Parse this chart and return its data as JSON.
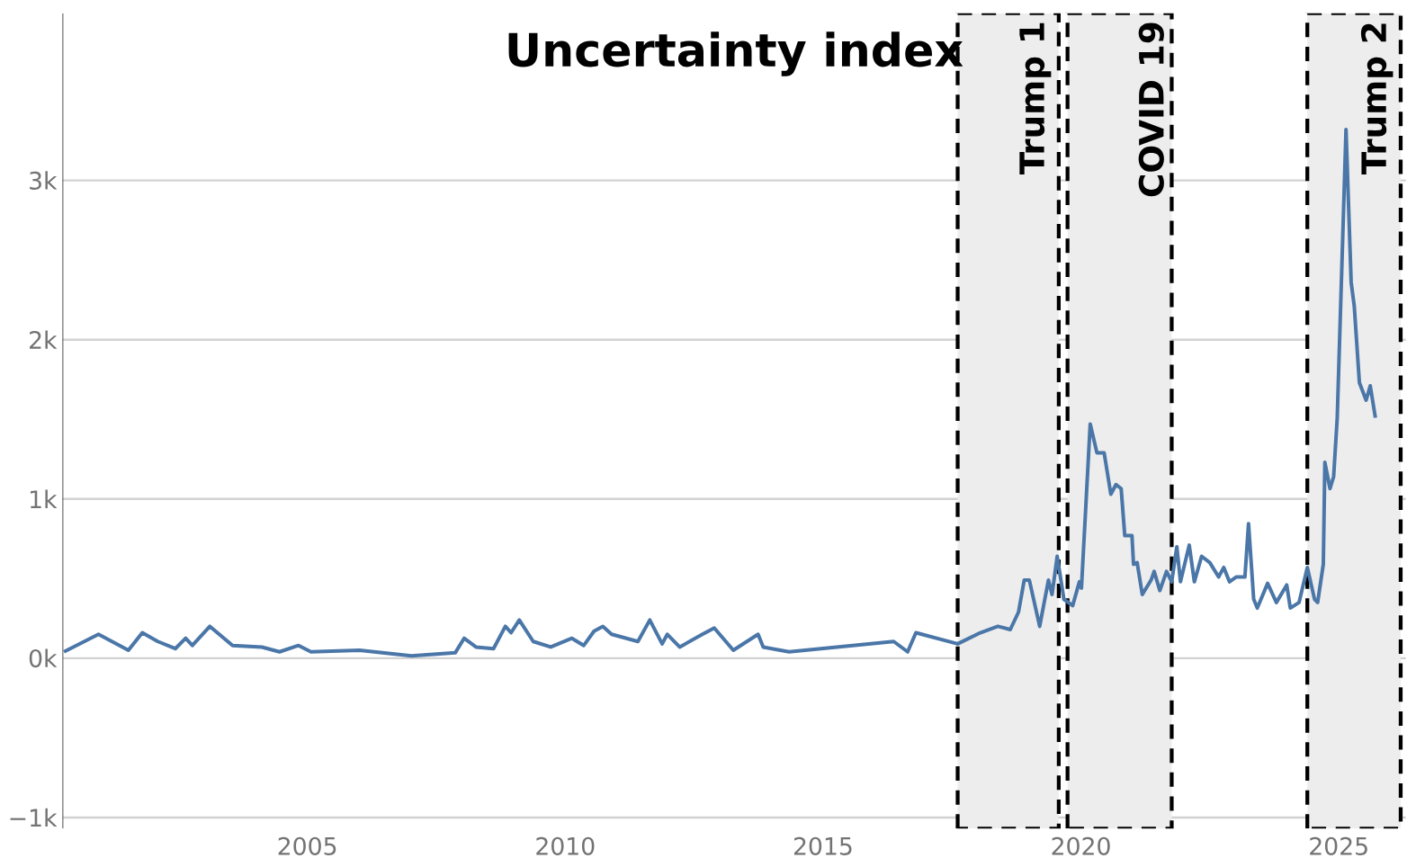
{
  "chart_data": {
    "type": "line",
    "title": "Uncertainty index",
    "color": "#4a76a8",
    "grid": "y",
    "x": [
      2000.28,
      2000.95,
      2001.53,
      2001.8,
      2002.1,
      2002.44,
      2002.64,
      2002.77,
      2003.11,
      2003.55,
      2004.12,
      2004.46,
      2004.83,
      2005.07,
      2006.01,
      2007.02,
      2007.87,
      2008.04,
      2008.27,
      2008.61,
      2008.84,
      2008.95,
      2009.11,
      2009.38,
      2009.72,
      2010.13,
      2010.36,
      2010.56,
      2010.73,
      2010.9,
      2011.41,
      2011.64,
      2011.88,
      2011.98,
      2012.22,
      2012.66,
      2012.89,
      2013.26,
      2013.74,
      2013.84,
      2014.34,
      2016.37,
      2016.64,
      2016.8,
      2017.61,
      2018.05,
      2018.39,
      2018.63,
      2018.79,
      2018.9,
      2019.0,
      2019.2,
      2019.37,
      2019.44,
      2019.54,
      2019.67,
      2019.84,
      2019.97,
      2020.01,
      2020.18,
      2020.31,
      2020.45,
      2020.58,
      2020.68,
      2020.78,
      2020.85,
      2020.99,
      2021.02,
      2021.09,
      2021.19,
      2021.36,
      2021.42,
      2021.53,
      2021.66,
      2021.76,
      2021.86,
      2021.93,
      2022.1,
      2022.2,
      2022.34,
      2022.5,
      2022.67,
      2022.77,
      2022.88,
      2023.01,
      2023.18,
      2023.25,
      2023.35,
      2023.42,
      2023.62,
      2023.79,
      2023.99,
      2024.06,
      2024.23,
      2024.39,
      2024.53,
      2024.59,
      2024.7,
      2024.73,
      2024.83,
      2024.9,
      2024.97,
      2025.14,
      2025.24,
      2025.3,
      2025.4,
      2025.53,
      2025.61,
      2025.71
    ],
    "values": [
      40,
      150,
      50,
      160,
      105,
      60,
      125,
      80,
      200,
      80,
      70,
      40,
      80,
      40,
      50,
      15,
      35,
      125,
      70,
      60,
      200,
      160,
      240,
      105,
      70,
      125,
      80,
      170,
      200,
      150,
      105,
      240,
      90,
      150,
      70,
      150,
      190,
      50,
      150,
      70,
      40,
      105,
      40,
      160,
      90,
      160,
      200,
      180,
      290,
      490,
      490,
      200,
      490,
      400,
      640,
      370,
      330,
      480,
      440,
      1470,
      1290,
      1290,
      1030,
      1090,
      1065,
      770,
      770,
      590,
      600,
      400,
      490,
      545,
      425,
      545,
      480,
      700,
      480,
      710,
      480,
      640,
      600,
      510,
      570,
      480,
      510,
      510,
      845,
      370,
      315,
      470,
      350,
      460,
      315,
      350,
      570,
      370,
      350,
      590,
      1230,
      1065,
      1140,
      1510,
      3320,
      2360,
      2210,
      1730,
      1620,
      1710,
      1510
    ],
    "xlim": [
      2000.25,
      2026.3
    ],
    "ylim": [
      -1070,
      4050
    ],
    "xticks": [
      2005,
      2010,
      2015,
      2020,
      2025
    ],
    "yticks": [
      {
        "value": -1000,
        "label": "−1k"
      },
      {
        "value": 0,
        "label": "0k"
      },
      {
        "value": 1000,
        "label": "1k"
      },
      {
        "value": 2000,
        "label": "2k"
      },
      {
        "value": 3000,
        "label": "3k"
      }
    ],
    "bands": [
      {
        "axis": "x",
        "from": 2017.61,
        "to": 2019.57,
        "label": "Trump 1",
        "color": "#ededed"
      },
      {
        "axis": "x",
        "from": 2019.74,
        "to": 2021.76,
        "label": "COVID 19",
        "color": "#ededed"
      },
      {
        "axis": "x",
        "from": 2024.39,
        "to": 2026.2,
        "label": "Trump 2",
        "color": "#ededed"
      }
    ]
  }
}
